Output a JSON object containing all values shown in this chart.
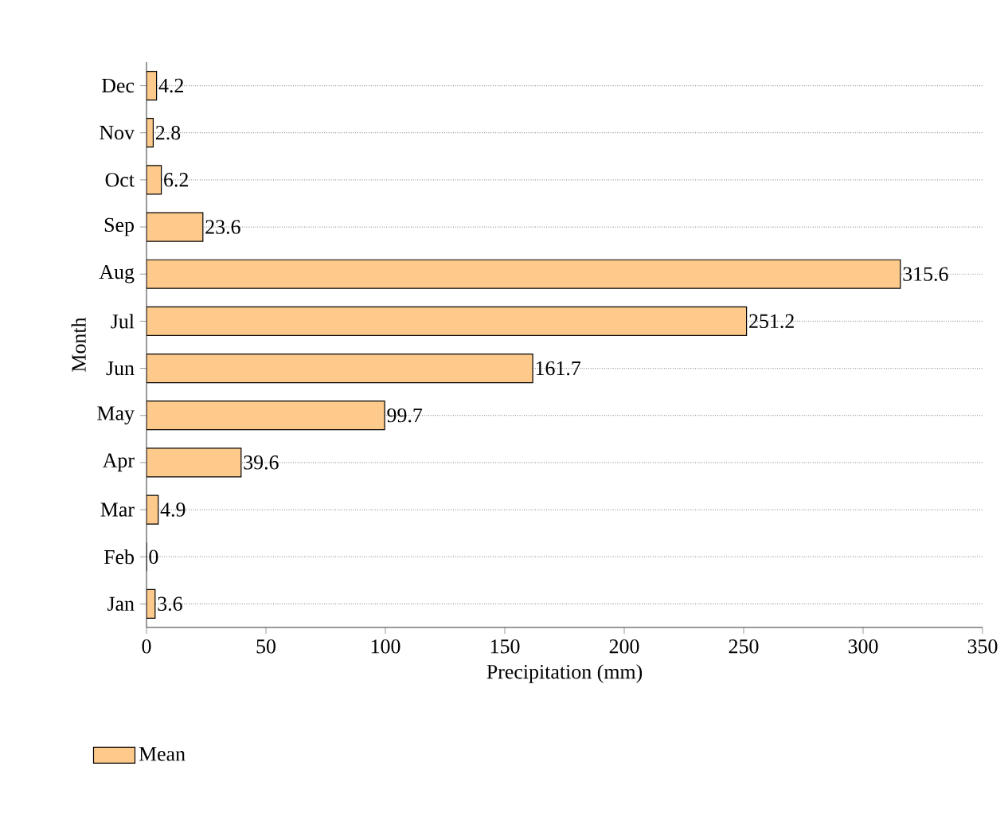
{
  "chart_data": {
    "type": "bar",
    "orientation": "horizontal",
    "xlabel": "Precipitation (mm)",
    "ylabel": "Month",
    "categories": [
      "Dec",
      "Nov",
      "Oct",
      "Sep",
      "Aug",
      "Jul",
      "Jun",
      "May",
      "Apr",
      "Mar",
      "Feb",
      "Jan"
    ],
    "series": [
      {
        "name": "Mean",
        "color": "#fdca8b",
        "values": [
          4.2,
          2.8,
          6.2,
          23.6,
          315.6,
          251.2,
          161.7,
          99.7,
          39.6,
          4.9,
          0,
          3.6
        ]
      }
    ],
    "xlim": [
      0,
      350
    ],
    "xticks": [
      0,
      50,
      100,
      150,
      200,
      250,
      300,
      350
    ],
    "data_labels": true,
    "grid": "y",
    "legend": "bottom left"
  }
}
